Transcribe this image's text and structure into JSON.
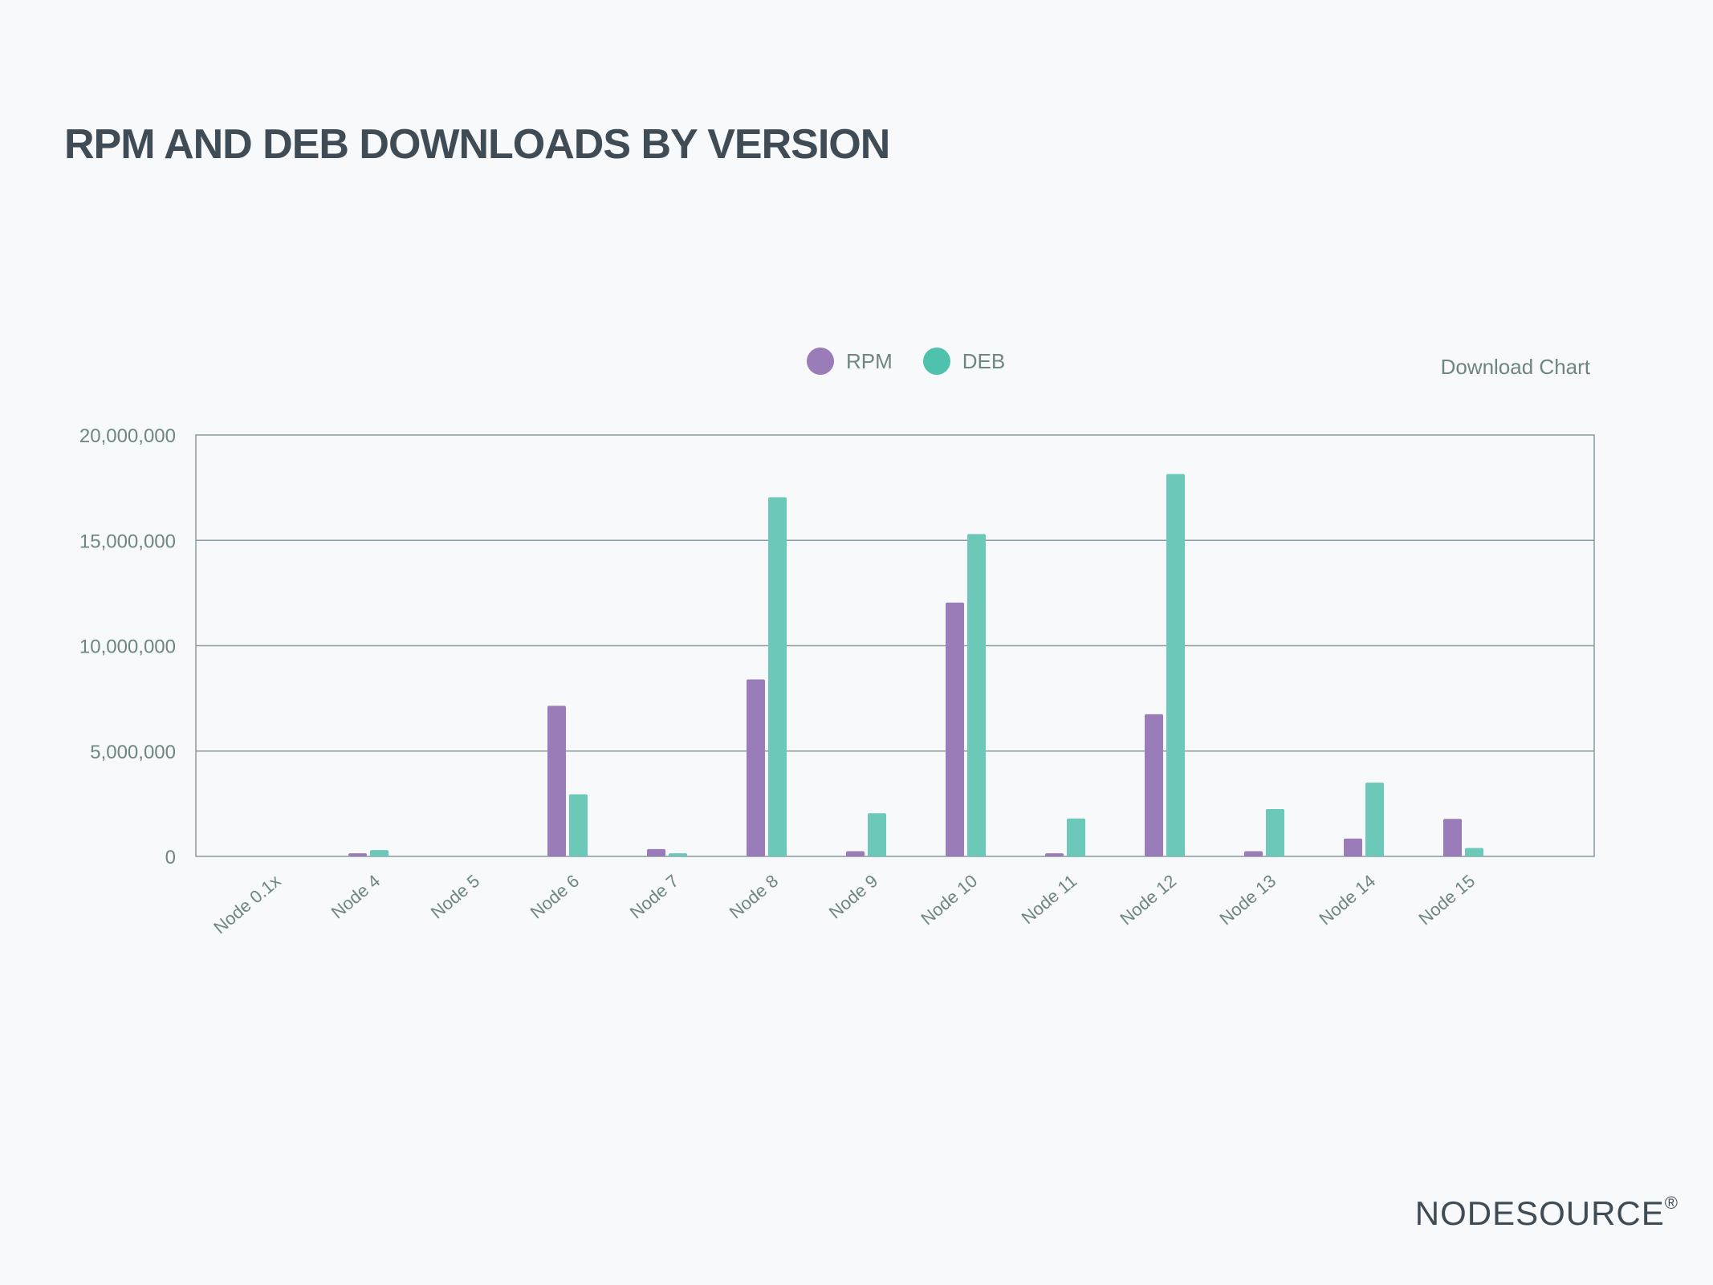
{
  "title": "RPM AND DEB DOWNLOADS BY VERSION",
  "download_label": "Download Chart",
  "brand": {
    "name": "NODESOURCE",
    "mark": "®"
  },
  "colors": {
    "rpm": "#9a7cb8",
    "deb": "#6cc8b8",
    "deb_legend": "#4fc2ae",
    "grid": "#8a9aa0",
    "text": "#6f8680"
  },
  "chart_data": {
    "type": "bar",
    "categories": [
      "Node 0.1x",
      "Node 4",
      "Node 5",
      "Node 6",
      "Node 7",
      "Node 8",
      "Node 9",
      "Node 10",
      "Node 11",
      "Node 12",
      "Node 13",
      "Node 14",
      "Node 15"
    ],
    "series": [
      {
        "name": "RPM",
        "values": [
          0,
          150000,
          0,
          7150000,
          350000,
          8400000,
          250000,
          12050000,
          150000,
          6750000,
          250000,
          850000,
          1780000
        ]
      },
      {
        "name": "DEB",
        "values": [
          0,
          300000,
          0,
          2950000,
          150000,
          17050000,
          2050000,
          15300000,
          1800000,
          18150000,
          2250000,
          3500000,
          400000
        ]
      }
    ],
    "ylim": [
      0,
      20000000
    ],
    "yticks": [
      "0",
      "5,000,000",
      "10,000,000",
      "15,000,000",
      "20,000,000"
    ],
    "ytick_values": [
      0,
      5000000,
      10000000,
      15000000,
      20000000
    ],
    "legend": "top-center",
    "grid": true
  }
}
